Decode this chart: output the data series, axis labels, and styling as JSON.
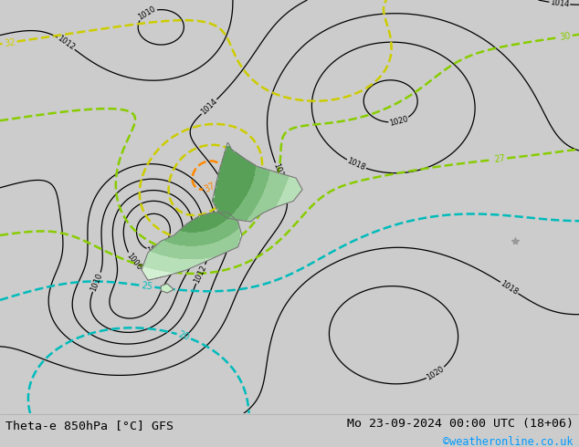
{
  "title_left": "Theta-e 850hPa [°C] GFS",
  "title_right": "Mo 23-09-2024 00:00 UTC (18+06)",
  "title_right2": "©weatheronline.co.uk",
  "bg_color": "#cccccc",
  "map_bg": "#d8d8d8",
  "bottom_bar_color": "#ffffff",
  "text_color": "#000000",
  "link_color": "#0099ff",
  "figsize": [
    6.34,
    4.9
  ],
  "dpi": 100,
  "pressure_color": "#000000",
  "cyan_color": "#00bbbb",
  "lime_color": "#88cc00",
  "yellow_color": "#cccc00",
  "orange_color": "#ff8800"
}
